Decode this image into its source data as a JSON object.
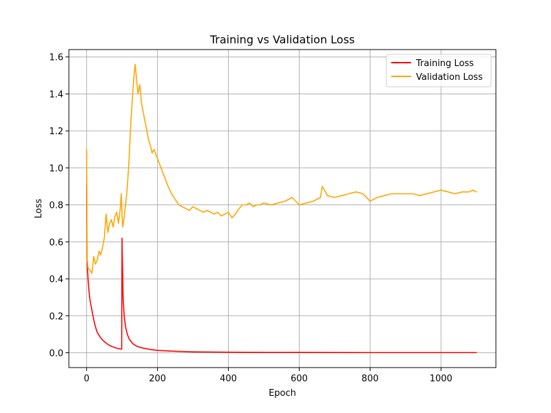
{
  "chart_data": {
    "type": "line",
    "title": "Training vs Validation Loss",
    "xlabel": "Epoch",
    "ylabel": "Loss",
    "xlim": [
      -50,
      1155
    ],
    "ylim": [
      -0.08,
      1.64
    ],
    "xticks": [
      0,
      200,
      400,
      600,
      800,
      1000
    ],
    "xtick_labels": [
      "0",
      "200",
      "400",
      "600",
      "800",
      "1000"
    ],
    "yticks": [
      0.0,
      0.2,
      0.4,
      0.6,
      0.8,
      1.0,
      1.2,
      1.4,
      1.6
    ],
    "ytick_labels": [
      "0.0",
      "0.2",
      "0.4",
      "0.6",
      "0.8",
      "1.0",
      "1.2",
      "1.4",
      "1.6"
    ],
    "grid": true,
    "legend_position": "top-right",
    "series": [
      {
        "name": "Training Loss",
        "color": "#ff0000",
        "x": [
          0,
          1,
          2,
          4,
          6,
          8,
          10,
          15,
          20,
          25,
          30,
          40,
          50,
          60,
          70,
          80,
          90,
          99,
          100,
          101,
          103,
          106,
          110,
          115,
          120,
          130,
          140,
          150,
          160,
          180,
          200,
          250,
          300,
          400,
          500,
          600,
          800,
          1000,
          1100
        ],
        "y": [
          0.91,
          0.6,
          0.48,
          0.4,
          0.35,
          0.31,
          0.28,
          0.23,
          0.18,
          0.14,
          0.11,
          0.08,
          0.06,
          0.045,
          0.035,
          0.028,
          0.022,
          0.02,
          0.62,
          0.5,
          0.3,
          0.2,
          0.14,
          0.1,
          0.075,
          0.05,
          0.037,
          0.03,
          0.025,
          0.018,
          0.013,
          0.008,
          0.005,
          0.003,
          0.002,
          0.002,
          0.001,
          0.001,
          0.001
        ]
      },
      {
        "name": "Validation Loss",
        "color": "#ffa500",
        "x": [
          0,
          1,
          2,
          4,
          8,
          12,
          15,
          20,
          25,
          30,
          35,
          40,
          45,
          50,
          55,
          60,
          65,
          70,
          75,
          80,
          85,
          90,
          95,
          98,
          100,
          102,
          105,
          110,
          115,
          120,
          125,
          130,
          133,
          137,
          140,
          145,
          150,
          155,
          160,
          165,
          170,
          175,
          180,
          185,
          190,
          200,
          210,
          220,
          230,
          240,
          250,
          260,
          270,
          280,
          290,
          300,
          310,
          320,
          330,
          340,
          350,
          360,
          370,
          380,
          390,
          400,
          410,
          420,
          430,
          440,
          450,
          460,
          470,
          480,
          490,
          500,
          520,
          540,
          560,
          580,
          600,
          620,
          640,
          660,
          665,
          680,
          700,
          720,
          740,
          760,
          780,
          800,
          810,
          820,
          840,
          860,
          880,
          900,
          920,
          940,
          960,
          980,
          1000,
          1020,
          1040,
          1060,
          1080,
          1090,
          1100
        ],
        "y": [
          1.1,
          0.7,
          0.5,
          0.46,
          0.45,
          0.44,
          0.43,
          0.52,
          0.48,
          0.5,
          0.55,
          0.53,
          0.57,
          0.62,
          0.75,
          0.65,
          0.7,
          0.72,
          0.68,
          0.74,
          0.76,
          0.7,
          0.78,
          0.86,
          0.74,
          0.68,
          0.72,
          0.8,
          0.9,
          1.05,
          1.25,
          1.4,
          1.48,
          1.56,
          1.5,
          1.4,
          1.45,
          1.35,
          1.3,
          1.25,
          1.2,
          1.15,
          1.12,
          1.08,
          1.1,
          1.05,
          1.0,
          0.95,
          0.9,
          0.86,
          0.83,
          0.8,
          0.79,
          0.78,
          0.77,
          0.79,
          0.78,
          0.77,
          0.76,
          0.77,
          0.76,
          0.75,
          0.76,
          0.74,
          0.75,
          0.76,
          0.73,
          0.75,
          0.78,
          0.8,
          0.8,
          0.81,
          0.79,
          0.8,
          0.8,
          0.81,
          0.8,
          0.81,
          0.82,
          0.84,
          0.8,
          0.81,
          0.82,
          0.84,
          0.9,
          0.85,
          0.84,
          0.85,
          0.86,
          0.87,
          0.86,
          0.82,
          0.83,
          0.84,
          0.85,
          0.86,
          0.86,
          0.86,
          0.86,
          0.85,
          0.86,
          0.87,
          0.88,
          0.87,
          0.86,
          0.87,
          0.87,
          0.88,
          0.87
        ]
      }
    ]
  }
}
